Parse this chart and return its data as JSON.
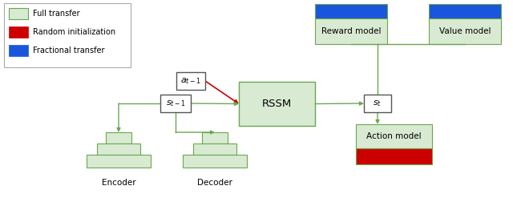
{
  "colors": {
    "green_fill": "#d9ead3",
    "green_edge": "#6aa84f",
    "red_fill": "#cc0000",
    "blue_fill": "#1a56db",
    "box_edge": "#555555",
    "arrow_green": "#6aa84f",
    "arrow_red": "#cc0000",
    "bg": "#ffffff",
    "legend_edge": "#aaaaaa"
  },
  "legend": {
    "full_transfer": "Full transfer",
    "random_init": "Random initialization",
    "fractional": "Fractional transfer"
  },
  "labels": {
    "encoder": "Encoder",
    "decoder": "Decoder",
    "rssm": "RSSM",
    "reward": "Reward model",
    "value": "Value model",
    "action": "Action model",
    "s_t1": "$s_{t-1}$",
    "a_t1": "$a_{t-1}$",
    "s_t": "$s_t$"
  }
}
